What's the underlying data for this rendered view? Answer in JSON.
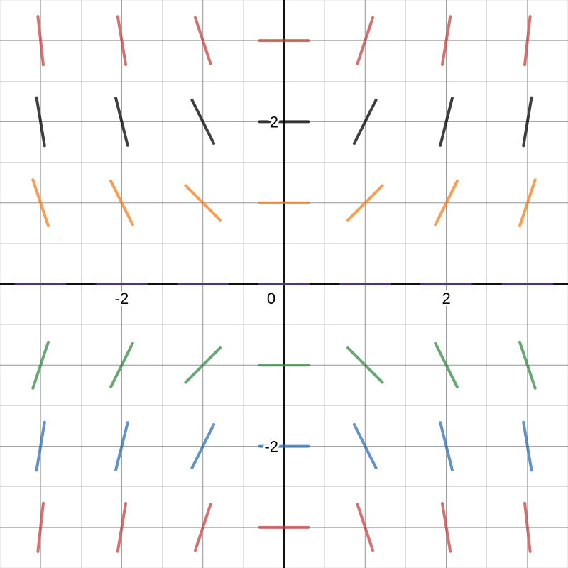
{
  "chart_data": {
    "type": "slope_field",
    "title": "",
    "xlabel": "",
    "ylabel": "",
    "xlim": [
      -3.5,
      3.5
    ],
    "ylim": [
      -3.5,
      3.5
    ],
    "grid": true,
    "x_tick_labels": [
      {
        "value": -2,
        "text": "-2"
      },
      {
        "value": 0,
        "text": "0"
      },
      {
        "value": 2,
        "text": "2"
      }
    ],
    "y_tick_labels": [
      {
        "value": 2,
        "text": "2"
      },
      {
        "value": -2,
        "text": "-2"
      }
    ],
    "segment_half_length": 0.3,
    "sample_x": [
      -3,
      -2,
      -1,
      0,
      1,
      2,
      3
    ],
    "series": [
      {
        "y": 3,
        "color": "#c74440",
        "slopes": [
          -9,
          -6,
          -3,
          0,
          3,
          6,
          9
        ]
      },
      {
        "y": 2,
        "color": "#000000",
        "slopes": [
          -6,
          -4,
          -2,
          0,
          2,
          4,
          6
        ]
      },
      {
        "y": 1,
        "color": "#fa7e19",
        "slopes": [
          -3,
          -2,
          -1,
          0,
          1,
          2,
          3
        ]
      },
      {
        "y": 0,
        "color": "#6042a6",
        "slopes": [
          0,
          0,
          0,
          0,
          0,
          0,
          0
        ]
      },
      {
        "y": -1,
        "color": "#388c46",
        "slopes": [
          3,
          2,
          1,
          0,
          -1,
          -2,
          -3
        ]
      },
      {
        "y": -2,
        "color": "#2d70b3",
        "slopes": [
          6,
          4,
          2,
          0,
          -2,
          -4,
          -6
        ]
      },
      {
        "y": -3,
        "color": "#c74440",
        "slopes": [
          9,
          6,
          3,
          0,
          -3,
          -6,
          -9
        ]
      }
    ]
  }
}
